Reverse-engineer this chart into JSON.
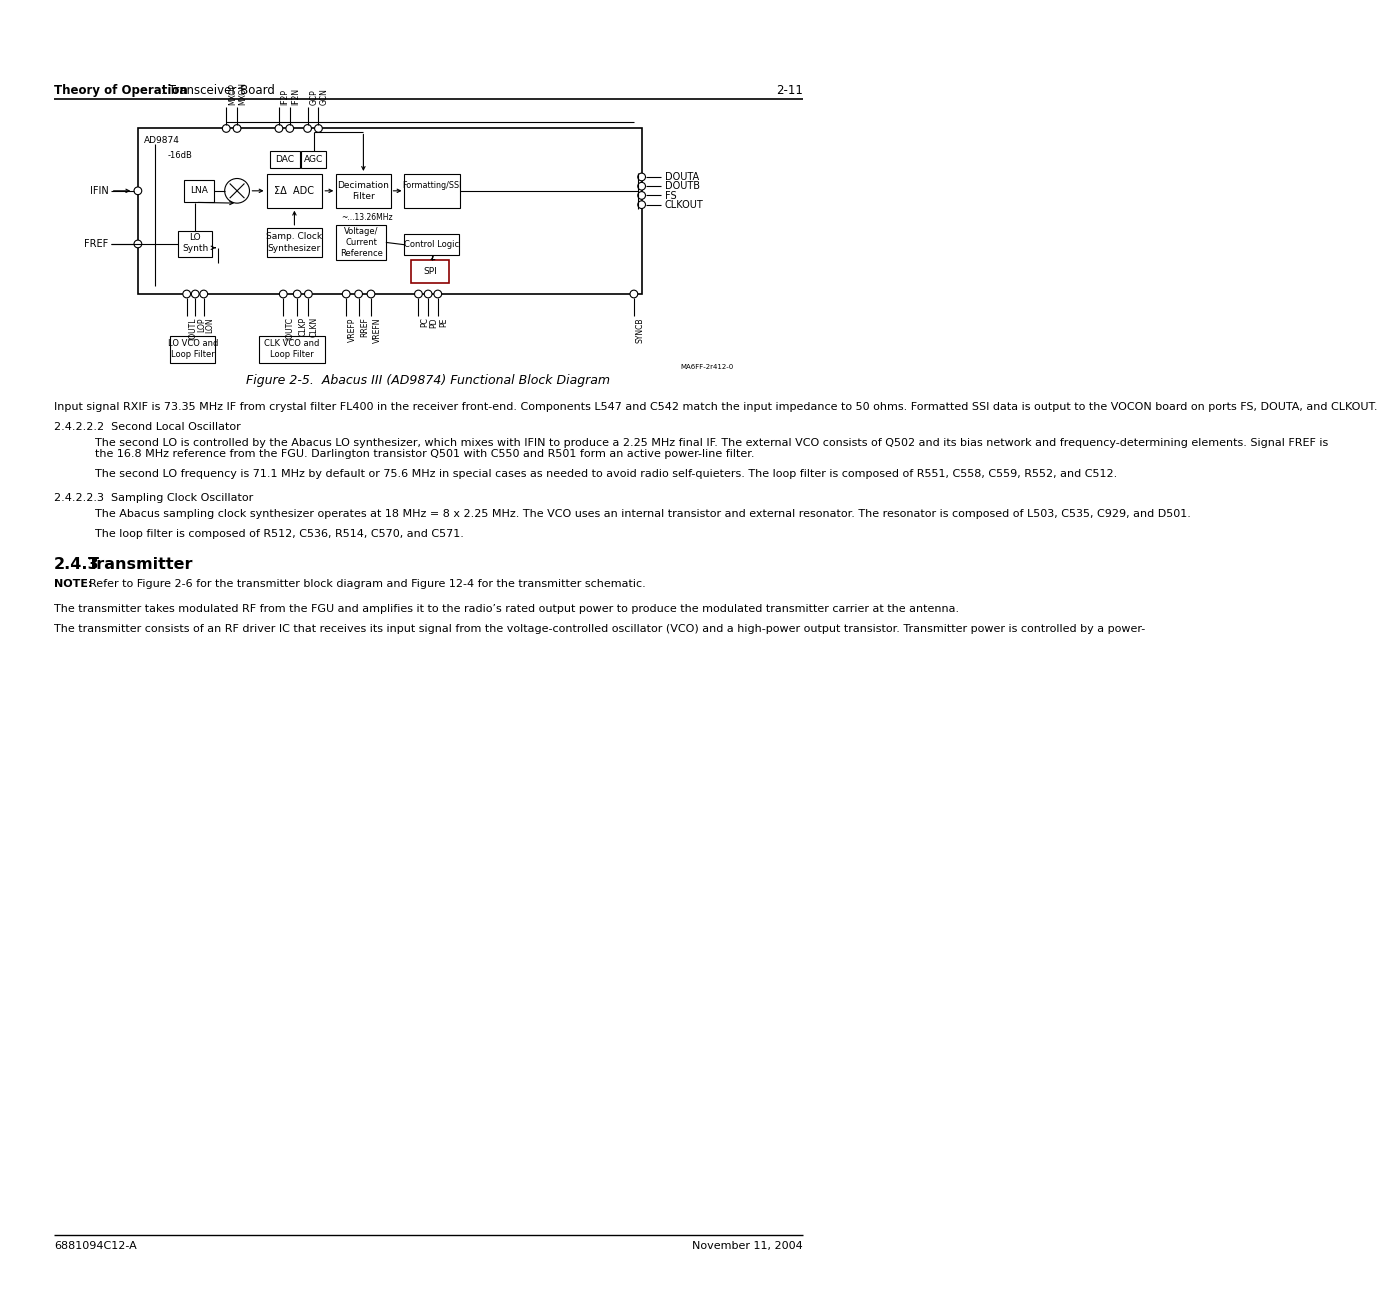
{
  "page_header_left_bold": "Theory of Operation",
  "page_header_colon": ": Transceiver Board",
  "page_header_right": "2-11",
  "figure_caption": "Figure 2-5.  Abacus III (AD9874) Functional Block Diagram",
  "footer_left": "6881094C12-A",
  "footer_right": "November 11, 2004",
  "section_242": "2.4.2.2.2  Second Local Oscillator",
  "section_243": "2.4.2.2.3  Sampling Clock Oscillator",
  "section_243_num": "2.4.3",
  "section_243_title": "Transmitter",
  "para1": "Input signal RXIF is 73.35 MHz IF from crystal filter FL400 in the receiver front-end. Components L547 and C542 match the input impedance to 50 ohms.  Formatted SSI data is output to the VOCON board on ports FS, DOUTA, and CLKOUT.",
  "para2": "The second LO is controlled by the Abacus LO synthesizer, which mixes with IFIN to produce a 2.25 MHz final IF. The external VCO consists of Q502 and its bias network and frequency-determining elements. Signal FREF is the 16.8 MHz reference from the FGU. Darlington transistor Q501 with C550 and R501 form an active power-line filter.",
  "para3": "The second LO frequency is 71.1 MHz by default or 75.6 MHz in special cases as needed to avoid radio self-quieters. The loop filter is composed of R551, C558, C559, R552, and C512.",
  "para4": "The Abacus sampling clock synthesizer operates at 18 MHz = 8 x 2.25 MHz. The VCO uses an internal transistor and external resonator. The resonator is composed of L503, C535, C929, and D501.",
  "para5": "The loop filter is composed of R512, C536, R514, C570, and C571.",
  "note_bold": "NOTE:",
  "note_text": "  Refer to Figure 2-6 for the transmitter block diagram and Figure 12-4 for the transmitter schematic.",
  "para6": "The transmitter takes modulated RF from the FGU and amplifies it to the radio’s rated output power to produce the modulated transmitter carrier at the antenna.",
  "para7": "The transmitter consists of an RF driver IC that receives its input signal from the voltage-controlled oscillator (VCO) and a high-power output transistor. Transmitter power is controlled by a power-",
  "bg_color": "#ffffff",
  "text_color": "#000000",
  "spi_box_color": "#8b0000",
  "watermark": "MA6FF-2r412-0"
}
